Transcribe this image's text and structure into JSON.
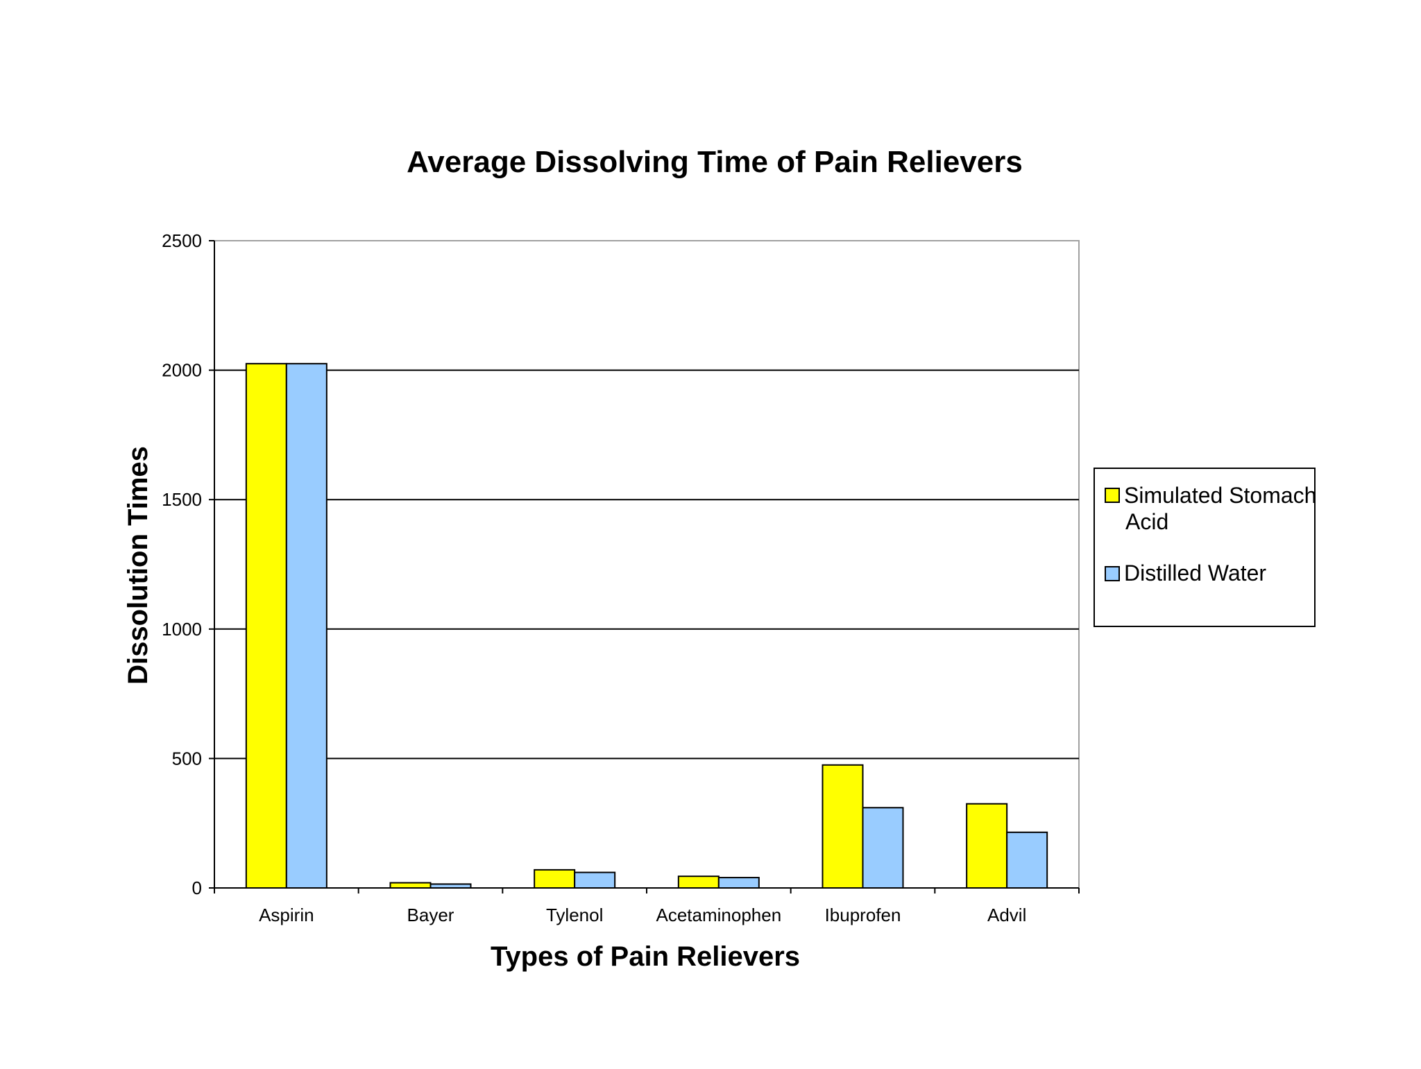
{
  "chart_data": {
    "type": "bar",
    "title": "Average Dissolving Time of Pain Relievers",
    "xlabel": "Types of Pain Relievers",
    "ylabel": "Dissolution Times",
    "categories": [
      "Aspirin",
      "Bayer",
      "Tylenol",
      "Acetaminophen",
      "Ibuprofen",
      "Advil"
    ],
    "series": [
      {
        "name": "Simulated Stomach Acid",
        "legend_lines": [
          "Simulated Stomach",
          "Acid"
        ],
        "color": "#ffff00",
        "values": [
          2025,
          20,
          70,
          45,
          475,
          325
        ]
      },
      {
        "name": "Distilled Water",
        "legend_lines": [
          "Distilled Water"
        ],
        "color": "#99ccff",
        "values": [
          2025,
          15,
          60,
          40,
          310,
          215
        ]
      }
    ],
    "ylim": [
      0,
      2500
    ],
    "yticks": [
      0,
      500,
      1000,
      1500,
      2000,
      2500
    ],
    "grid": true,
    "legend_position": "right"
  }
}
